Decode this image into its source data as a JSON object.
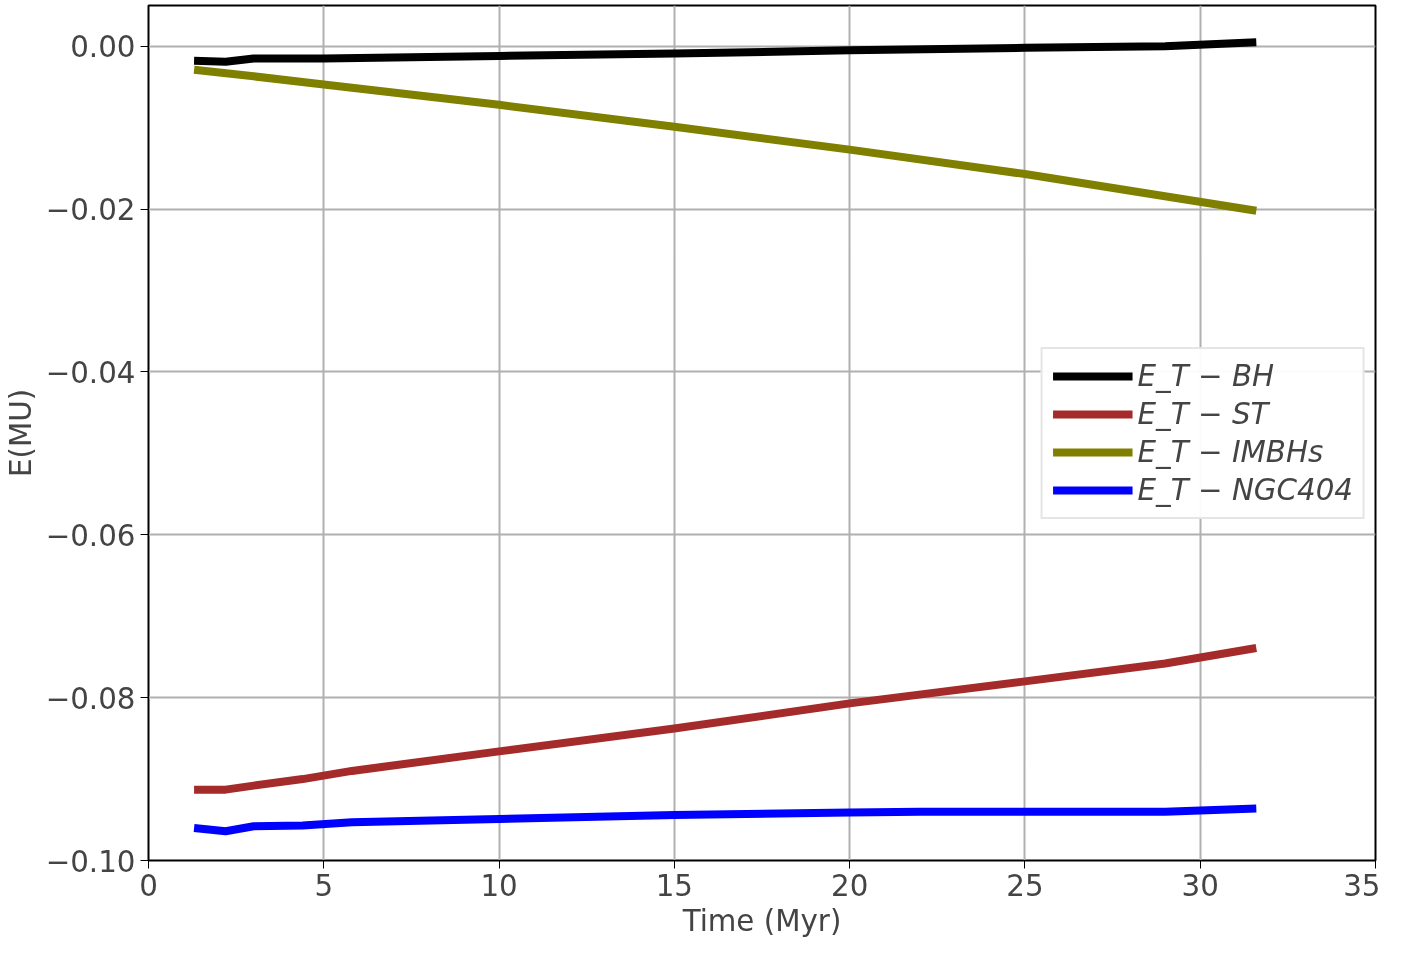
{
  "chart_data": {
    "type": "line",
    "xlabel": "Time (Myr)",
    "ylabel": "E(MU)",
    "xlim": [
      0,
      35
    ],
    "ylim": [
      -0.1,
      0.005
    ],
    "xticks": [
      0,
      5,
      10,
      15,
      20,
      25,
      30,
      35
    ],
    "yticks": [
      {
        "value": -0.1,
        "label": "−0.10"
      },
      {
        "value": -0.08,
        "label": "−0.08"
      },
      {
        "value": -0.06,
        "label": "−0.06"
      },
      {
        "value": -0.04,
        "label": "−0.04"
      },
      {
        "value": -0.02,
        "label": "−0.02"
      },
      {
        "value": 0,
        "label": "0.00"
      }
    ],
    "grid": true,
    "legend": "center right",
    "line_style": "solid",
    "marker": "none",
    "series": [
      {
        "name": "E_T − BH",
        "color": "#000000",
        "x": [
          1.3,
          2.2,
          3,
          5,
          10,
          15,
          20,
          25,
          29,
          31.6
        ],
        "values": [
          -0.0018,
          -0.0019,
          -0.0015,
          -0.0015,
          -0.0012,
          -0.0009,
          -0.0005,
          -0.0002,
          0.0,
          0.0005
        ]
      },
      {
        "name": "E_T − ST",
        "color": "#a52a2a",
        "x": [
          1.3,
          2.2,
          3,
          4.4,
          5.8,
          10,
          15,
          20,
          25,
          29,
          31.6
        ],
        "values": [
          -0.0913,
          -0.0913,
          -0.0908,
          -0.09,
          -0.089,
          -0.0866,
          -0.0838,
          -0.0807,
          -0.078,
          -0.0758,
          -0.0739
        ]
      },
      {
        "name": "E_T − IMBHs",
        "color": "#808000",
        "x": [
          1.3,
          3,
          5,
          10,
          15,
          20,
          25,
          31.6
        ],
        "values": [
          -0.0029,
          -0.0037,
          -0.0047,
          -0.0072,
          -0.0099,
          -0.0127,
          -0.0157,
          -0.0202
        ]
      },
      {
        "name": "E_T − NGC404",
        "color": "#0000ff",
        "x": [
          1.3,
          2.2,
          3,
          4.4,
          5.8,
          10,
          15,
          20,
          22,
          29,
          31.6
        ],
        "values": [
          -0.096,
          -0.0964,
          -0.0958,
          -0.0957,
          -0.0953,
          -0.0949,
          -0.0944,
          -0.0941,
          -0.094,
          -0.094,
          -0.0936
        ]
      }
    ]
  }
}
